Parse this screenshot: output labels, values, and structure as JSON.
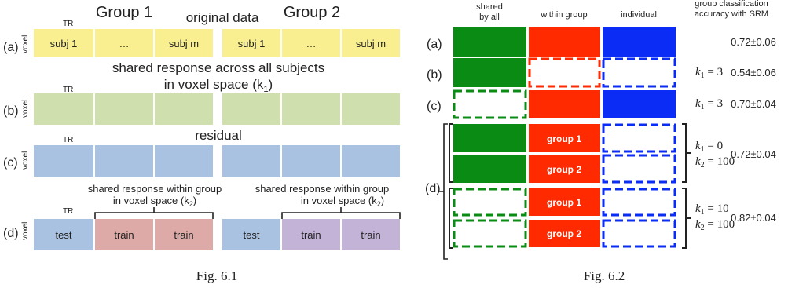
{
  "fig1": {
    "group1_title": "Group 1",
    "group2_title": "Group 2",
    "a": {
      "header": "original data",
      "label": "(a)",
      "tr": "TR",
      "axis": "voxel",
      "g1_cells": [
        "subj 1",
        "…",
        "subj m"
      ],
      "g2_cells": [
        "subj 1",
        "…",
        "subj m"
      ]
    },
    "b": {
      "header_line1": "shared response across all subjects",
      "header_line2": "in voxel space (k",
      "header_sub": "1",
      "header_close": ")",
      "label": "(b)",
      "tr": "TR",
      "axis": "voxel"
    },
    "c": {
      "header": "residual",
      "label": "(c)",
      "tr": "TR",
      "axis": "voxel"
    },
    "d": {
      "label": "(d)",
      "tr": "TR",
      "axis": "voxel",
      "note_line1": "shared response within group",
      "note_line2": "in voxel space (k",
      "note_sub": "2",
      "note_close": ")",
      "g1_cells": [
        "test",
        "train",
        "train"
      ],
      "g2_cells": [
        "test",
        "train",
        "train"
      ]
    },
    "caption": "Fig. 6.1"
  },
  "fig2": {
    "col_shared_line1": "shared",
    "col_shared_line2": "by all",
    "col_within": "within group",
    "col_individual": "individual",
    "col_acc_line1": "group classification",
    "col_acc_line2": "accuracy with SRM",
    "group1": "group 1",
    "group2": "group 2",
    "rows": {
      "a": {
        "label": "(a)",
        "accuracy": "0.72±0.06"
      },
      "b": {
        "label": "(b)",
        "k_label": "k",
        "k_sub": "1",
        "k_value": " = 3",
        "accuracy": "0.54±0.06"
      },
      "c": {
        "label": "(c)",
        "k_label": "k",
        "k_sub": "1",
        "k_value": " = 3",
        "accuracy": "0.70±0.04"
      },
      "d": {
        "label": "(d)",
        "first": {
          "k1": " = 0",
          "k2": " = 100",
          "accuracy": "0.72±0.04"
        },
        "second": {
          "k1": " = 10",
          "k2": " = 100",
          "accuracy": "0.82±0.04"
        },
        "k_label": "k",
        "k1_sub": "1",
        "k2_sub": "2"
      }
    },
    "caption": "Fig. 6.2"
  },
  "colors": {
    "yellow": "#f9ef90",
    "light_green": "#cfdfae",
    "light_blue": "#a9c2e1",
    "test_blue": "#a9c2e1",
    "train_pink": "#deaaa8",
    "train_purple": "#c3b3d7",
    "green": "#0a8b14",
    "red": "#ff2a00",
    "blue": "#0b2cf5"
  }
}
